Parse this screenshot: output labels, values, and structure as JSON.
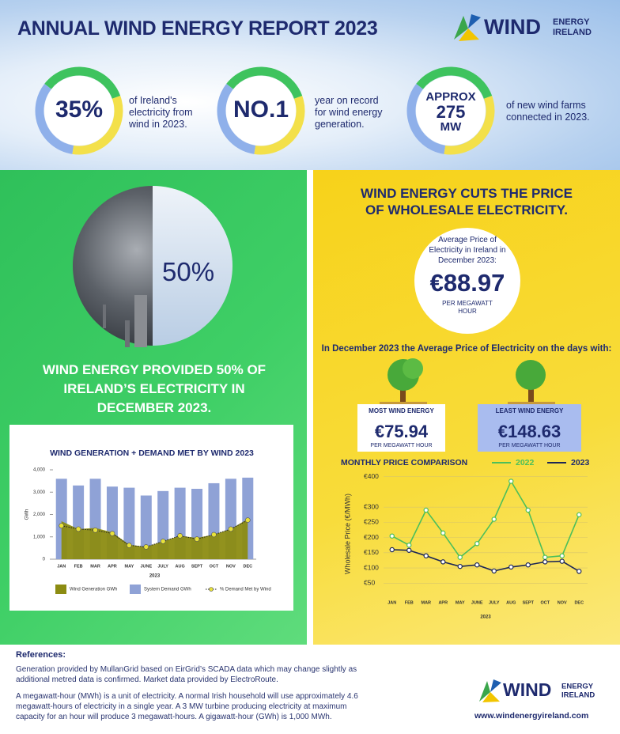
{
  "header": {
    "title": "ANNUAL WIND ENERGY REPORT 2023",
    "logo": {
      "word": "WIND",
      "line1": "ENERGY",
      "line2": "IRELAND"
    }
  },
  "stats": [
    {
      "value": "35%",
      "text": "of Ireland's electricity from wind in 2023."
    },
    {
      "value": "NO.1",
      "text": "year on record for wind energy generation."
    },
    {
      "value_lines": [
        "APPROX",
        "275",
        "MW"
      ],
      "text": "of new wind farms connected in 2023."
    }
  ],
  "green_panel": {
    "percent": "50%",
    "headline": "WIND ENERGY PROVIDED 50% OF IRELAND’S ELECTRICITY IN DECEMBER 2023."
  },
  "wind_chart": {
    "type": "bar",
    "title": "WIND GENERATION + DEMAND MET BY WIND 2023",
    "y_label": "GWh",
    "x_label": "2023",
    "categories": [
      "JAN",
      "FEB",
      "MAR",
      "APR",
      "MAY",
      "JUNE",
      "JULY",
      "AUG",
      "SEPT",
      "OCT",
      "NOV",
      "DEC"
    ],
    "series": [
      {
        "name": "Wind Generation GWh",
        "type": "area",
        "color": "#8c8c12",
        "values": [
          1700,
          1350,
          1400,
          1200,
          650,
          550,
          800,
          1050,
          950,
          1100,
          1350,
          1800
        ]
      },
      {
        "name": "System Demand GWh",
        "type": "bar",
        "color": "#8fa2d6",
        "values": [
          3600,
          3300,
          3600,
          3250,
          3200,
          2850,
          3050,
          3200,
          3150,
          3400,
          3600,
          3650
        ]
      },
      {
        "name": "% Demand Met by Wind",
        "type": "line",
        "color": "#e8e23a",
        "values": [
          1500,
          1350,
          1300,
          1150,
          620,
          550,
          800,
          1050,
          900,
          1100,
          1350,
          1750
        ]
      }
    ],
    "ylim": [
      0,
      4000
    ],
    "yticks": [
      0,
      {
        "value": 1000,
        "label": "1,000"
      },
      {
        "value": 2000,
        "label": "2,000"
      },
      {
        "value": 3000,
        "label": "3,000"
      },
      {
        "value": 4000,
        "label": "4,000"
      }
    ]
  },
  "yellow_panel": {
    "headline": "WIND ENERGY CUTS THE PRICE OF WHOLESALE ELECTRICITY.",
    "price": {
      "label": "Average Price of Electricity in Ireland in December 2023:",
      "value": "€88.97",
      "unit": "PER MEGAWATT HOUR"
    },
    "subheading": "In December 2023 the Average Price of Electricity on the days with:",
    "most": {
      "title": "MOST WIND ENERGY",
      "value": "€75.94",
      "unit": "PER MEGAWATT HOUR"
    },
    "least": {
      "title": "LEAST WIND ENERGY",
      "value": "€148.63",
      "unit": "PER MEGAWATT HOUR"
    }
  },
  "price_chart": {
    "type": "line",
    "title": "MONTHLY PRICE COMPARISON",
    "y_label": "Wholesale Price (€/MWh)",
    "x_label": "2023",
    "categories": [
      "JAN",
      "FEB",
      "MAR",
      "APR",
      "MAY",
      "JUNE",
      "JULY",
      "AUG",
      "SEPT",
      "OCT",
      "NOV",
      "DEC"
    ],
    "series": [
      {
        "name": "2022",
        "color": "#4cbf5a",
        "values": [
          205,
          175,
          290,
          215,
          135,
          180,
          260,
          385,
          290,
          135,
          140,
          275
        ]
      },
      {
        "name": "2023",
        "color": "#1c2657",
        "values": [
          160,
          158,
          140,
          120,
          105,
          110,
          90,
          103,
          110,
          120,
          122,
          89
        ]
      }
    ],
    "ylim": [
      30,
      420
    ],
    "yticks": [
      {
        "value": 400,
        "label": "€400"
      },
      {
        "value": 300,
        "label": "€300"
      },
      {
        "value": 250,
        "label": "€250"
      },
      {
        "value": 200,
        "label": "€200"
      },
      {
        "value": 150,
        "label": "€150"
      },
      {
        "value": 100,
        "label": "€100"
      },
      {
        "value": 50,
        "label": "€50"
      }
    ],
    "grid": true
  },
  "references": {
    "heading": "References:",
    "paragraphs": [
      "Generation provided by MullanGrid based on EirGrid’s SCADA data which may change slightly as additional metred data is confirmed. Market data provided by ElectroRoute.",
      "A megawatt-hour (MWh) is a unit of electricity. A normal Irish household will use approximately 4.6 megawatt-hours of electricity in a single year. A 3 MW turbine producing electricity at maximum capacity for an hour will produce 3 megawatt-hours. A gigawatt-hour (GWh) is 1,000 MWh."
    ],
    "url": "www.windenergyireland.com"
  }
}
